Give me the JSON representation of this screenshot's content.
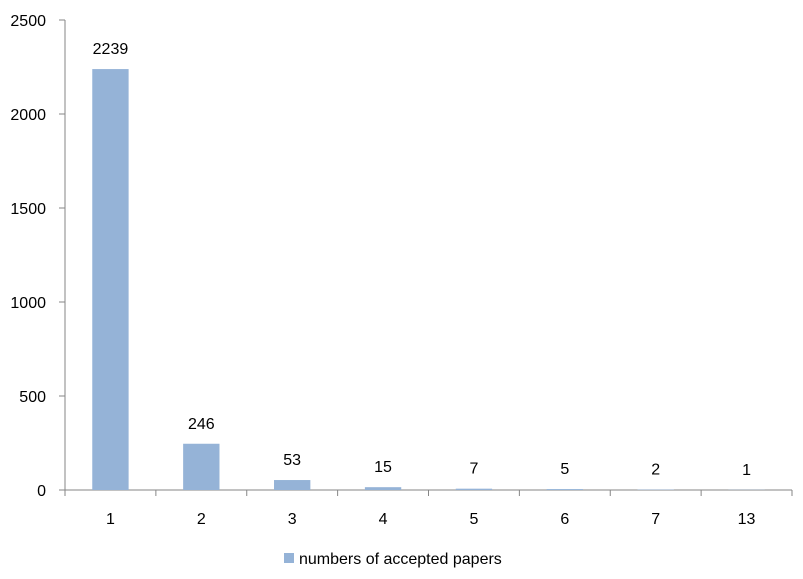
{
  "chart_data": {
    "type": "bar",
    "categories": [
      "1",
      "2",
      "3",
      "4",
      "5",
      "6",
      "7",
      "13"
    ],
    "series": [
      {
        "name": "numbers of accepted papers",
        "values": [
          2239,
          246,
          53,
          15,
          7,
          5,
          2,
          1
        ],
        "color": "#95B3D7"
      }
    ],
    "data_labels": [
      "2239",
      "246",
      "53",
      "15",
      "7",
      "5",
      "2",
      "1"
    ],
    "ylim": [
      0,
      2500
    ],
    "yticks": [
      0,
      500,
      1000,
      1500,
      2000,
      2500
    ],
    "ytick_labels": [
      "0",
      "500",
      "1000",
      "1500",
      "2000",
      "2500"
    ],
    "grid": false,
    "legend_position": "bottom",
    "axis_color": "#868686"
  }
}
